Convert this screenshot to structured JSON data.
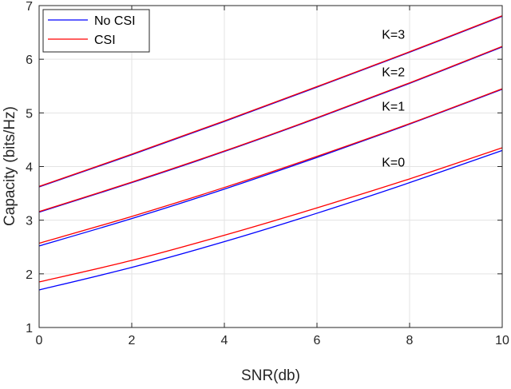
{
  "chart_data": {
    "type": "line",
    "xlabel": "SNR(db)",
    "ylabel": "Capacity (bits/Hz)",
    "xlim": [
      0,
      10
    ],
    "ylim": [
      1,
      7
    ],
    "xticks": [
      0,
      2,
      4,
      6,
      8,
      10
    ],
    "yticks": [
      1,
      2,
      3,
      4,
      5,
      6,
      7
    ],
    "grid": true,
    "legend_position": "top-left",
    "colors": {
      "No CSI": "#0000ff",
      "CSI": "#ff0000"
    },
    "legend": [
      {
        "name": "No CSI",
        "color": "#0000ff"
      },
      {
        "name": "CSI",
        "color": "#ff0000"
      }
    ],
    "series": [
      {
        "name": "No CSI",
        "group": "K=0",
        "x": [
          0,
          2,
          4,
          6,
          8,
          10
        ],
        "y": [
          1.7,
          2.12,
          2.6,
          3.13,
          3.7,
          4.3
        ]
      },
      {
        "name": "CSI",
        "group": "K=0",
        "x": [
          0,
          2,
          4,
          6,
          8,
          10
        ],
        "y": [
          1.85,
          2.25,
          2.72,
          3.23,
          3.77,
          4.35
        ]
      },
      {
        "name": "No CSI",
        "group": "K=1",
        "x": [
          0,
          2,
          4,
          6,
          8,
          10
        ],
        "y": [
          2.52,
          3.03,
          3.58,
          4.17,
          4.79,
          5.44
        ]
      },
      {
        "name": "CSI",
        "group": "K=1",
        "x": [
          0,
          2,
          4,
          6,
          8,
          10
        ],
        "y": [
          2.57,
          3.07,
          3.61,
          4.19,
          4.8,
          5.45
        ]
      },
      {
        "name": "No CSI",
        "group": "K=2",
        "x": [
          0,
          2,
          4,
          6,
          8,
          10
        ],
        "y": [
          3.15,
          3.7,
          4.28,
          4.9,
          5.55,
          6.23
        ]
      },
      {
        "name": "CSI",
        "group": "K=2",
        "x": [
          0,
          2,
          4,
          6,
          8,
          10
        ],
        "y": [
          3.16,
          3.71,
          4.29,
          4.91,
          5.56,
          6.24
        ]
      },
      {
        "name": "No CSI",
        "group": "K=3",
        "x": [
          0,
          2,
          4,
          6,
          8,
          10
        ],
        "y": [
          3.62,
          4.22,
          4.84,
          5.48,
          6.13,
          6.8
        ]
      },
      {
        "name": "CSI",
        "group": "K=3",
        "x": [
          0,
          2,
          4,
          6,
          8,
          10
        ],
        "y": [
          3.63,
          4.23,
          4.85,
          5.49,
          6.14,
          6.81
        ]
      }
    ],
    "annotations": [
      {
        "text": "K=3",
        "x": 7.65,
        "y": 6.38
      },
      {
        "text": "K=2",
        "x": 7.65,
        "y": 5.68
      },
      {
        "text": "K=1",
        "x": 7.65,
        "y": 5.04
      },
      {
        "text": "K=0",
        "x": 7.65,
        "y": 4.0
      }
    ]
  }
}
